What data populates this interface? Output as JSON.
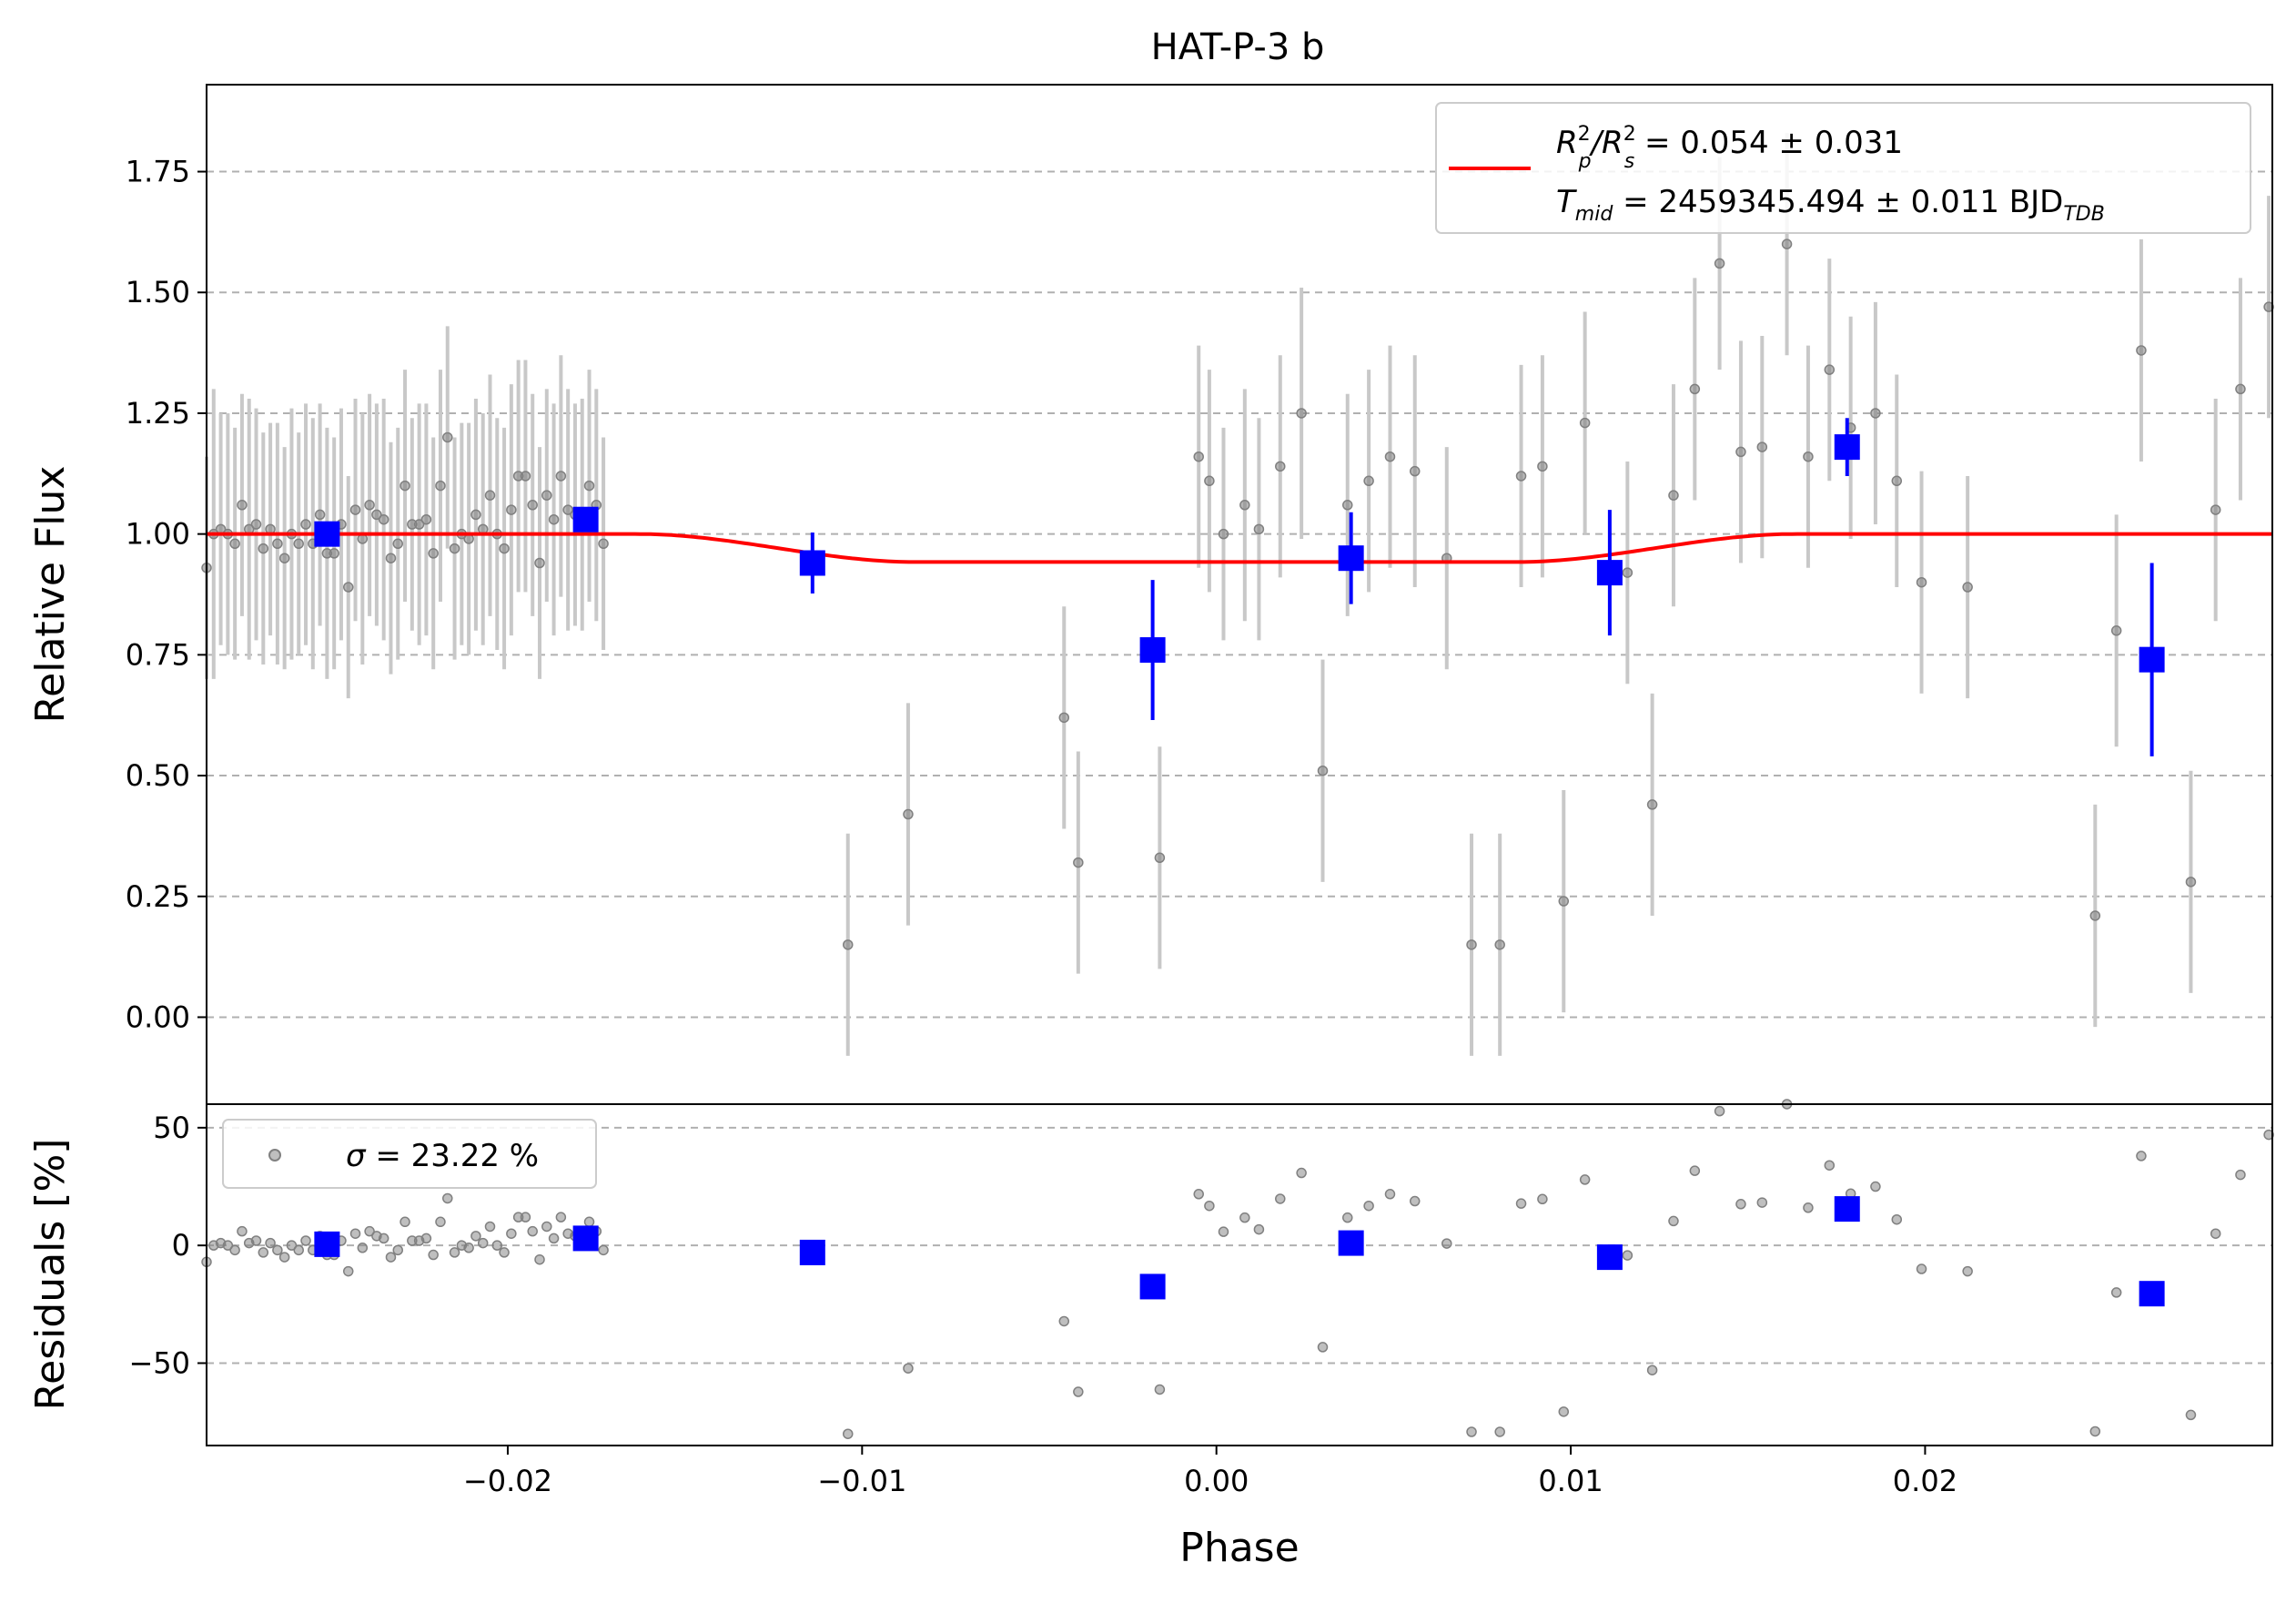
{
  "chart_data": {
    "type": "scatter",
    "title": "HAT-P-3 b",
    "xlabel": "Phase",
    "xlim": [
      -0.0285,
      0.0298
    ],
    "xticks": [
      -0.02,
      -0.01,
      0.0,
      0.01,
      0.02
    ],
    "xtick_labels": [
      "−0.02",
      "−0.01",
      "0.00",
      "0.01",
      "0.02"
    ],
    "panels": {
      "flux": {
        "ylabel": "Relative Flux",
        "ylim": [
          -0.18,
          1.93
        ],
        "yticks": [
          0.0,
          0.25,
          0.5,
          0.75,
          1.0,
          1.25,
          1.5,
          1.75
        ],
        "ytick_labels": [
          "0.00",
          "0.25",
          "0.50",
          "0.75",
          "1.00",
          "1.25",
          "1.50",
          "1.75"
        ],
        "grid": "horizontal dashed"
      },
      "residuals": {
        "ylabel": "Residuals [%]",
        "ylim": [
          -85,
          60
        ],
        "yticks": [
          -50,
          0,
          50
        ],
        "ytick_labels": [
          "−50",
          "0",
          "50"
        ],
        "grid": "horizontal dashed"
      }
    },
    "legend_top": {
      "placement": "top-right",
      "line_label_1": {
        "base": "R",
        "sup1": "2",
        "sub1": "p",
        "mid": "/R",
        "sup2": "2",
        "sub2": "s",
        "rest": " = 0.054 ± 0.031"
      },
      "line_label_2": {
        "base": "T",
        "sub": "mid",
        "rest": " = 2459345.494 ± 0.011 BJD",
        "sub2": "TDB"
      }
    },
    "legend_bottom": {
      "placement": "top-left",
      "label_prefix": "σ",
      "label_rest": " = 23.22 %"
    },
    "colors": {
      "raw_points": "#808080",
      "raw_errorbars": "#c8c8c8",
      "binned": "#0000ff",
      "model": "#ff0000",
      "grid": "#b0b0b0"
    },
    "raw": [
      [
        -0.0285,
        0.93,
        0.23
      ],
      [
        -0.0283,
        1.0,
        0.3
      ],
      [
        -0.0281,
        1.01,
        0.24
      ],
      [
        -0.0279,
        1.0,
        0.25
      ],
      [
        -0.0277,
        0.98,
        0.24
      ],
      [
        -0.0275,
        1.06,
        0.23
      ],
      [
        -0.0273,
        1.01,
        0.27
      ],
      [
        -0.0271,
        1.02,
        0.24
      ],
      [
        -0.0269,
        0.97,
        0.24
      ],
      [
        -0.0267,
        1.01,
        0.22
      ],
      [
        -0.0265,
        0.98,
        0.25
      ],
      [
        -0.0263,
        0.95,
        0.23
      ],
      [
        -0.0261,
        1.0,
        0.26
      ],
      [
        -0.0259,
        0.98,
        0.23
      ],
      [
        -0.0257,
        1.02,
        0.25
      ],
      [
        -0.0255,
        0.98,
        0.26
      ],
      [
        -0.0253,
        1.04,
        0.23
      ],
      [
        -0.0251,
        0.96,
        0.26
      ],
      [
        -0.0249,
        0.96,
        0.24
      ],
      [
        -0.0247,
        1.02,
        0.24
      ],
      [
        -0.0245,
        0.89,
        0.23
      ],
      [
        -0.0243,
        1.05,
        0.23
      ],
      [
        -0.0241,
        0.99,
        0.26
      ],
      [
        -0.0239,
        1.06,
        0.23
      ],
      [
        -0.0237,
        1.04,
        0.23
      ],
      [
        -0.0235,
        1.03,
        0.25
      ],
      [
        -0.0233,
        0.95,
        0.24
      ],
      [
        -0.0231,
        0.98,
        0.24
      ],
      [
        -0.0229,
        1.1,
        0.24
      ],
      [
        -0.0227,
        1.02,
        0.22
      ],
      [
        -0.0225,
        1.02,
        0.25
      ],
      [
        -0.0223,
        1.03,
        0.24
      ],
      [
        -0.0221,
        0.96,
        0.24
      ],
      [
        -0.0219,
        1.1,
        0.24
      ],
      [
        -0.0217,
        1.2,
        0.23
      ],
      [
        -0.0215,
        0.97,
        0.23
      ],
      [
        -0.0213,
        1.0,
        0.23
      ],
      [
        -0.0211,
        0.99,
        0.24
      ],
      [
        -0.0209,
        1.04,
        0.24
      ],
      [
        -0.0207,
        1.01,
        0.24
      ],
      [
        -0.0205,
        1.08,
        0.25
      ],
      [
        -0.0203,
        1.0,
        0.24
      ],
      [
        -0.0201,
        0.97,
        0.25
      ],
      [
        -0.0199,
        1.05,
        0.26
      ],
      [
        -0.0197,
        1.12,
        0.24
      ],
      [
        -0.0195,
        1.12,
        0.24
      ],
      [
        -0.0193,
        1.06,
        0.23
      ],
      [
        -0.0191,
        0.94,
        0.24
      ],
      [
        -0.0189,
        1.08,
        0.22
      ],
      [
        -0.0187,
        1.03,
        0.24
      ],
      [
        -0.0185,
        1.12,
        0.25
      ],
      [
        -0.0183,
        1.05,
        0.25
      ],
      [
        -0.0181,
        1.04,
        0.23
      ],
      [
        -0.0179,
        1.04,
        0.24
      ],
      [
        -0.0177,
        1.1,
        0.24
      ],
      [
        -0.0175,
        1.06,
        0.24
      ],
      [
        -0.0173,
        0.98,
        0.22
      ],
      [
        -0.0104,
        0.15,
        0.23
      ],
      [
        -0.0087,
        0.42,
        0.23
      ],
      [
        -0.0043,
        0.62,
        0.23
      ],
      [
        -0.0039,
        0.32,
        0.23
      ],
      [
        -0.0016,
        0.33,
        0.23
      ],
      [
        -0.0005,
        1.16,
        0.23
      ],
      [
        -0.0002,
        1.11,
        0.23
      ],
      [
        0.0002,
        1.0,
        0.22
      ],
      [
        0.0008,
        1.06,
        0.24
      ],
      [
        0.0012,
        1.01,
        0.23
      ],
      [
        0.0018,
        1.14,
        0.23
      ],
      [
        0.0024,
        1.25,
        0.26
      ],
      [
        0.003,
        0.51,
        0.23
      ],
      [
        0.0037,
        1.06,
        0.23
      ],
      [
        0.0043,
        1.11,
        0.23
      ],
      [
        0.0049,
        1.16,
        0.23
      ],
      [
        0.0056,
        1.13,
        0.24
      ],
      [
        0.0065,
        0.95,
        0.23
      ],
      [
        0.0072,
        0.15,
        0.23
      ],
      [
        0.008,
        0.15,
        0.23
      ],
      [
        0.0086,
        1.12,
        0.23
      ],
      [
        0.0092,
        1.14,
        0.23
      ],
      [
        0.0098,
        0.24,
        0.23
      ],
      [
        0.0104,
        1.23,
        0.23
      ],
      [
        0.0116,
        0.92,
        0.23
      ],
      [
        0.0123,
        0.44,
        0.23
      ],
      [
        0.0129,
        1.08,
        0.23
      ],
      [
        0.0135,
        1.3,
        0.23
      ],
      [
        0.0142,
        1.56,
        0.22
      ],
      [
        0.0148,
        1.17,
        0.23
      ],
      [
        0.0154,
        1.18,
        0.23
      ],
      [
        0.0161,
        1.6,
        0.23
      ],
      [
        0.0167,
        1.16,
        0.23
      ],
      [
        0.0173,
        1.34,
        0.23
      ],
      [
        0.0179,
        1.22,
        0.23
      ],
      [
        0.0186,
        1.25,
        0.23
      ],
      [
        0.0192,
        1.11,
        0.22
      ],
      [
        0.0199,
        0.9,
        0.23
      ],
      [
        0.0212,
        0.89,
        0.23
      ],
      [
        0.0248,
        0.21,
        0.23
      ],
      [
        0.0254,
        0.8,
        0.24
      ],
      [
        0.0261,
        1.38,
        0.23
      ],
      [
        0.0275,
        0.28,
        0.23
      ],
      [
        0.0282,
        1.05,
        0.23
      ],
      [
        0.0289,
        1.3,
        0.23
      ],
      [
        0.0297,
        1.47,
        0.23
      ]
    ],
    "binned": [
      [
        -0.0251,
        1.0,
        0.02
      ],
      [
        -0.0178,
        1.03,
        0.02
      ],
      [
        -0.0114,
        0.94,
        0.063
      ],
      [
        -0.0018,
        0.76,
        0.145
      ],
      [
        0.0038,
        0.95,
        0.095
      ],
      [
        0.0111,
        0.92,
        0.13
      ],
      [
        0.0178,
        1.18,
        0.06
      ],
      [
        0.0264,
        0.74,
        0.2
      ]
    ],
    "binned_residuals": [
      [
        -0.0251,
        0.5
      ],
      [
        -0.0178,
        3.0
      ],
      [
        -0.0114,
        -3.0
      ],
      [
        -0.0018,
        -17.5
      ],
      [
        0.0038,
        1.0
      ],
      [
        0.0111,
        -5.0
      ],
      [
        0.0178,
        15.5
      ],
      [
        0.0264,
        -20.5
      ]
    ],
    "model": {
      "depth": 0.058,
      "t_contact1": -0.0163,
      "t_contact2": -0.0085,
      "t_contact3": 0.0085,
      "t_contact4": 0.0163
    }
  }
}
